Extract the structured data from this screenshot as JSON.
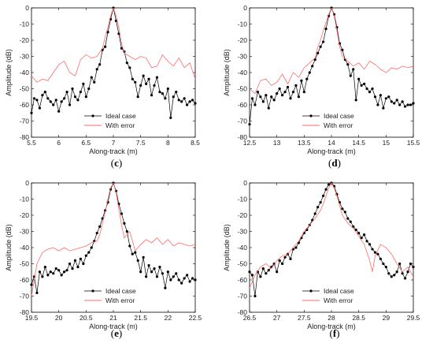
{
  "legend": {
    "ideal": "Ideal case",
    "error": "With error"
  },
  "colors": {
    "ideal": "#000000",
    "error": "#ff6b6b"
  },
  "chart_data": [
    {
      "type": "line",
      "panel_label": "c",
      "xlabel": "Along-track (m)",
      "ylabel": "Amplitude (dB)",
      "xlim": [
        5.5,
        8.5
      ],
      "ylim": [
        -80,
        0
      ],
      "xticks": [
        5.5,
        6,
        6.5,
        7,
        7.5,
        8,
        8.5
      ],
      "yticks": [
        0,
        -10,
        -20,
        -30,
        -40,
        -50,
        -60,
        -70,
        -80
      ],
      "legend_position": "bottom-center",
      "series": [
        {
          "name": "Ideal case",
          "marker": "dot",
          "x": [
            5.5,
            5.55,
            5.6,
            5.65,
            5.7,
            5.75,
            5.8,
            5.85,
            5.9,
            5.95,
            6.0,
            6.05,
            6.1,
            6.15,
            6.2,
            6.25,
            6.3,
            6.35,
            6.4,
            6.45,
            6.5,
            6.55,
            6.6,
            6.65,
            6.7,
            6.75,
            6.8,
            6.85,
            6.9,
            6.95,
            7.0,
            7.05,
            7.1,
            7.15,
            7.2,
            7.25,
            7.3,
            7.35,
            7.4,
            7.45,
            7.5,
            7.55,
            7.6,
            7.65,
            7.7,
            7.75,
            7.8,
            7.85,
            7.9,
            7.95,
            8.0,
            8.05,
            8.1,
            8.15,
            8.2,
            8.25,
            8.3,
            8.35,
            8.4,
            8.45,
            8.5
          ],
          "y": [
            -65,
            -56,
            -57,
            -62,
            -54,
            -52,
            -56,
            -58,
            -60,
            -57,
            -64,
            -58,
            -56,
            -52,
            -60,
            -50,
            -55,
            -57,
            -52,
            -47,
            -55,
            -50,
            -43,
            -46,
            -38,
            -35,
            -26,
            -24,
            -15,
            -7,
            0,
            -8,
            -16,
            -25,
            -27,
            -34,
            -37,
            -44,
            -46,
            -55,
            -48,
            -42,
            -47,
            -44,
            -54,
            -48,
            -43,
            -52,
            -53,
            -56,
            -50,
            -68,
            -55,
            -52,
            -57,
            -58,
            -56,
            -60,
            -58,
            -57,
            -59
          ]
        },
        {
          "name": "With error",
          "marker": "none",
          "x": [
            5.5,
            5.6,
            5.7,
            5.8,
            5.9,
            6.0,
            6.1,
            6.2,
            6.3,
            6.4,
            6.5,
            6.6,
            6.7,
            6.8,
            6.85,
            6.9,
            6.95,
            7.0,
            7.05,
            7.1,
            7.15,
            7.2,
            7.3,
            7.4,
            7.5,
            7.6,
            7.7,
            7.8,
            7.9,
            8.0,
            8.1,
            8.2,
            8.3,
            8.4,
            8.5
          ],
          "y": [
            -42,
            -46,
            -44,
            -45,
            -40,
            -35,
            -33,
            -40,
            -42,
            -32,
            -29,
            -31,
            -30,
            -25,
            -18,
            -12,
            -5,
            0,
            -5,
            -12,
            -22,
            -28,
            -30,
            -32,
            -30,
            -31,
            -37,
            -36,
            -29,
            -33,
            -36,
            -31,
            -37,
            -34,
            -44
          ]
        }
      ]
    },
    {
      "type": "line",
      "panel_label": "d",
      "xlabel": "Along-track (m)",
      "ylabel": "Amplitude (dB)",
      "xlim": [
        12.5,
        15.5
      ],
      "ylim": [
        -80,
        0
      ],
      "xticks": [
        12.5,
        13,
        13.5,
        14,
        14.5,
        15,
        15.5
      ],
      "yticks": [
        0,
        -10,
        -20,
        -30,
        -40,
        -50,
        -60,
        -70,
        -80
      ],
      "legend_position": "bottom-center",
      "series": [
        {
          "name": "Ideal case",
          "marker": "dot",
          "x": [
            12.5,
            12.55,
            12.6,
            12.65,
            12.7,
            12.75,
            12.8,
            12.85,
            12.9,
            12.95,
            13.0,
            13.05,
            13.1,
            13.15,
            13.2,
            13.25,
            13.3,
            13.35,
            13.4,
            13.45,
            13.5,
            13.55,
            13.6,
            13.65,
            13.7,
            13.75,
            13.8,
            13.85,
            13.9,
            13.95,
            14.0,
            14.05,
            14.1,
            14.15,
            14.2,
            14.25,
            14.3,
            14.35,
            14.4,
            14.45,
            14.5,
            14.55,
            14.6,
            14.65,
            14.7,
            14.75,
            14.8,
            14.85,
            14.9,
            14.95,
            15.0,
            15.05,
            15.1,
            15.15,
            15.2,
            15.25,
            15.3,
            15.35,
            15.4,
            15.45,
            15.5
          ],
          "y": [
            -72,
            -56,
            -60,
            -52,
            -55,
            -58,
            -54,
            -62,
            -55,
            -57,
            -53,
            -50,
            -54,
            -52,
            -49,
            -56,
            -52,
            -48,
            -55,
            -45,
            -52,
            -44,
            -40,
            -36,
            -32,
            -28,
            -24,
            -21,
            -13,
            -5,
            0,
            -4,
            -12,
            -22,
            -26,
            -32,
            -35,
            -42,
            -38,
            -57,
            -44,
            -48,
            -47,
            -50,
            -52,
            -50,
            -55,
            -60,
            -54,
            -62,
            -56,
            -55,
            -58,
            -59,
            -57,
            -60,
            -58,
            -61,
            -60,
            -60,
            -59
          ]
        },
        {
          "name": "With error",
          "marker": "none",
          "x": [
            12.5,
            12.6,
            12.7,
            12.8,
            12.9,
            13.0,
            13.1,
            13.2,
            13.3,
            13.4,
            13.5,
            13.6,
            13.7,
            13.75,
            13.8,
            13.85,
            13.9,
            13.95,
            14.0,
            14.05,
            14.1,
            14.15,
            14.2,
            14.3,
            14.4,
            14.5,
            14.6,
            14.7,
            14.8,
            14.9,
            15.0,
            15.1,
            15.2,
            15.3,
            15.4,
            15.5
          ],
          "y": [
            -50,
            -53,
            -45,
            -44,
            -48,
            -46,
            -41,
            -47,
            -40,
            -43,
            -37,
            -34,
            -31,
            -24,
            -20,
            -14,
            -9,
            -4,
            0,
            -5,
            -14,
            -24,
            -30,
            -33,
            -36,
            -34,
            -38,
            -33,
            -35,
            -38,
            -40,
            -37,
            -38,
            -36,
            -37,
            -36
          ]
        }
      ]
    },
    {
      "type": "line",
      "panel_label": "e",
      "xlabel": "Along-track (m)",
      "ylabel": "Amplitude (dB)",
      "xlim": [
        19.5,
        22.5
      ],
      "ylim": [
        -80,
        0
      ],
      "xticks": [
        19.5,
        20,
        20.5,
        21,
        21.5,
        22,
        22.5
      ],
      "yticks": [
        0,
        -10,
        -20,
        -30,
        -40,
        -50,
        -60,
        -70,
        -80
      ],
      "legend_position": "bottom-center",
      "series": [
        {
          "name": "Ideal case",
          "marker": "dot",
          "x": [
            19.5,
            19.55,
            19.6,
            19.65,
            19.7,
            19.75,
            19.8,
            19.85,
            19.9,
            19.95,
            20.0,
            20.05,
            20.1,
            20.15,
            20.2,
            20.25,
            20.3,
            20.35,
            20.4,
            20.45,
            20.5,
            20.55,
            20.6,
            20.65,
            20.7,
            20.75,
            20.8,
            20.85,
            20.9,
            20.95,
            21.0,
            21.05,
            21.1,
            21.15,
            21.2,
            21.25,
            21.3,
            21.35,
            21.4,
            21.45,
            21.5,
            21.55,
            21.6,
            21.65,
            21.7,
            21.75,
            21.8,
            21.85,
            21.9,
            21.95,
            22.0,
            22.05,
            22.1,
            22.15,
            22.2,
            22.25,
            22.3,
            22.35,
            22.4,
            22.45,
            22.5
          ],
          "y": [
            -63,
            -58,
            -68,
            -55,
            -58,
            -52,
            -57,
            -55,
            -56,
            -53,
            -54,
            -57,
            -55,
            -54,
            -50,
            -53,
            -48,
            -52,
            -47,
            -50,
            -45,
            -43,
            -40,
            -36,
            -31,
            -27,
            -22,
            -17,
            -12,
            -4,
            0,
            -5,
            -13,
            -19,
            -25,
            -30,
            -39,
            -44,
            -43,
            -48,
            -55,
            -46,
            -58,
            -51,
            -55,
            -53,
            -58,
            -52,
            -56,
            -65,
            -55,
            -60,
            -58,
            -56,
            -60,
            -62,
            -59,
            -57,
            -61,
            -59,
            -60
          ]
        },
        {
          "name": "With error",
          "marker": "none",
          "x": [
            19.5,
            19.6,
            19.7,
            19.8,
            19.9,
            20.0,
            20.1,
            20.2,
            20.3,
            20.4,
            20.5,
            20.6,
            20.7,
            20.75,
            20.8,
            20.85,
            20.9,
            20.95,
            21.0,
            21.05,
            21.1,
            21.15,
            21.2,
            21.3,
            21.4,
            21.5,
            21.6,
            21.7,
            21.8,
            21.9,
            22.0,
            22.1,
            22.2,
            22.3,
            22.4,
            22.5
          ],
          "y": [
            -70,
            -50,
            -43,
            -41,
            -40,
            -42,
            -40,
            -42,
            -41,
            -40,
            -39,
            -37,
            -36,
            -32,
            -25,
            -18,
            -10,
            -3,
            0,
            -6,
            -16,
            -26,
            -34,
            -30,
            -42,
            -38,
            -35,
            -37,
            -34,
            -38,
            -35,
            -39,
            -37,
            -38,
            -39,
            -38
          ]
        }
      ]
    },
    {
      "type": "line",
      "panel_label": "f",
      "xlabel": "Along-track (m)",
      "ylabel": "Amplitude (dB)",
      "xlim": [
        26.5,
        29.5
      ],
      "ylim": [
        -80,
        0
      ],
      "xticks": [
        26.5,
        27,
        27.5,
        28,
        28.5,
        29,
        29.5
      ],
      "yticks": [
        0,
        -10,
        -20,
        -30,
        -40,
        -50,
        -60,
        -70,
        -80
      ],
      "legend_position": "bottom-center",
      "series": [
        {
          "name": "Ideal case",
          "marker": "dot",
          "x": [
            26.5,
            26.55,
            26.6,
            26.65,
            26.7,
            26.75,
            26.8,
            26.85,
            26.9,
            26.95,
            27.0,
            27.05,
            27.1,
            27.15,
            27.2,
            27.25,
            27.3,
            27.35,
            27.4,
            27.45,
            27.5,
            27.55,
            27.6,
            27.65,
            27.7,
            27.75,
            27.8,
            27.85,
            27.9,
            27.95,
            28.0,
            28.05,
            28.1,
            28.15,
            28.2,
            28.25,
            28.3,
            28.35,
            28.4,
            28.45,
            28.5,
            28.55,
            28.6,
            28.65,
            28.7,
            28.75,
            28.8,
            28.85,
            28.9,
            28.95,
            29.0,
            29.05,
            29.1,
            29.15,
            29.2,
            29.25,
            29.3,
            29.35,
            29.4,
            29.45,
            29.5
          ],
          "y": [
            -55,
            -57,
            -70,
            -55,
            -58,
            -53,
            -56,
            -54,
            -52,
            -50,
            -55,
            -48,
            -50,
            -46,
            -44,
            -47,
            -41,
            -40,
            -37,
            -34,
            -31,
            -29,
            -26,
            -23,
            -19,
            -15,
            -12,
            -8,
            -4,
            -1,
            0,
            -2,
            -7,
            -12,
            -16,
            -18,
            -22,
            -24,
            -27,
            -29,
            -31,
            -34,
            -32,
            -36,
            -38,
            -41,
            -43,
            -44,
            -47,
            -50,
            -52,
            -56,
            -58,
            -57,
            -55,
            -50,
            -56,
            -59,
            -55,
            -50,
            -52
          ]
        },
        {
          "name": "With error",
          "marker": "none",
          "x": [
            26.5,
            26.6,
            26.7,
            26.8,
            26.9,
            27.0,
            27.1,
            27.2,
            27.3,
            27.4,
            27.5,
            27.6,
            27.7,
            27.8,
            27.85,
            27.9,
            27.95,
            28.0,
            28.05,
            28.1,
            28.15,
            28.2,
            28.3,
            28.4,
            28.5,
            28.6,
            28.7,
            28.75,
            28.8,
            28.9,
            29.0,
            29.1,
            29.2,
            29.3,
            29.4,
            29.5
          ],
          "y": [
            -65,
            -57,
            -52,
            -50,
            -53,
            -48,
            -45,
            -44,
            -40,
            -36,
            -30,
            -26,
            -22,
            -17,
            -13,
            -8,
            -3,
            0,
            -3,
            -8,
            -14,
            -20,
            -25,
            -28,
            -33,
            -38,
            -48,
            -55,
            -45,
            -38,
            -40,
            -44,
            -50,
            -55,
            -52,
            -58
          ]
        }
      ]
    }
  ]
}
